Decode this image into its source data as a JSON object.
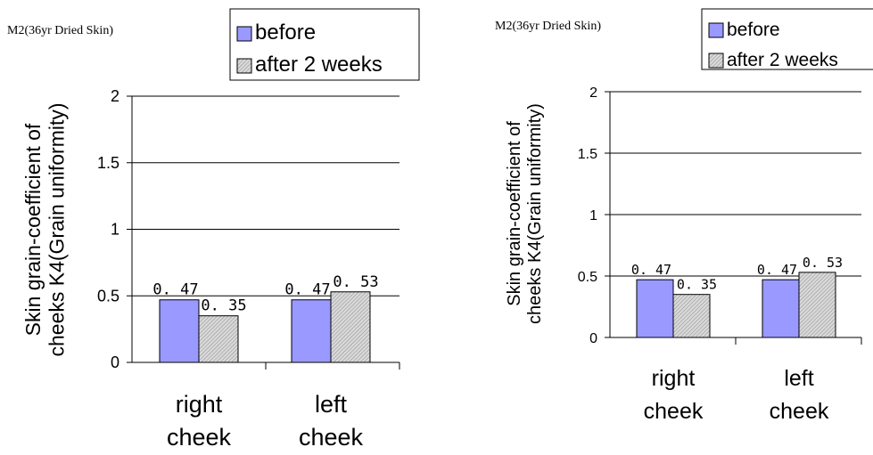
{
  "colors": {
    "before": "#9999ff",
    "after_fill": "#d9d9d9",
    "after_hatch": "#8c8c8c",
    "axis": "#000000",
    "grid": "#000000"
  },
  "chart_data": [
    {
      "type": "bar",
      "title": "M2(36yr Dried Skin)",
      "ylabel": "Skin grain-coefficient of cheeks K4(Grain uniformity)",
      "categories": [
        "right cheek",
        "left cheek"
      ],
      "category_lines": [
        [
          "right",
          "cheek"
        ],
        [
          "left",
          "cheek"
        ]
      ],
      "series": [
        {
          "name": "before",
          "values": [
            0.47,
            0.47
          ],
          "value_labels": [
            "0. 47",
            "0. 47"
          ]
        },
        {
          "name": "after 2 weeks",
          "values": [
            0.35,
            0.53
          ],
          "value_labels": [
            "0. 35",
            "0. 53"
          ]
        }
      ],
      "ylim": [
        0,
        2
      ],
      "yticks": [
        0,
        0.5,
        1,
        1.5,
        2
      ],
      "ytick_labels": [
        "0",
        "0.5",
        "1",
        "1.5",
        "2"
      ],
      "grid": true,
      "legend_position": "top"
    },
    {
      "type": "bar",
      "title": "M2(36yr Dried Skin)",
      "ylabel": "Skin grain-coefficient of cheeks K4(Grain uniformity)",
      "categories": [
        "right cheek",
        "left cheek"
      ],
      "category_lines": [
        [
          "right",
          "cheek"
        ],
        [
          "left",
          "cheek"
        ]
      ],
      "series": [
        {
          "name": "before",
          "values": [
            0.47,
            0.47
          ],
          "value_labels": [
            "0. 47",
            "0. 47"
          ]
        },
        {
          "name": "after 2 weeks",
          "values": [
            0.35,
            0.53
          ],
          "value_labels": [
            "0. 35",
            "0. 53"
          ]
        }
      ],
      "ylim": [
        0,
        2
      ],
      "yticks": [
        0,
        0.5,
        1,
        1.5,
        2
      ],
      "ytick_labels": [
        "0",
        "0.5",
        "1",
        "1.5",
        "2"
      ],
      "grid": true,
      "legend_position": "top-right"
    }
  ]
}
